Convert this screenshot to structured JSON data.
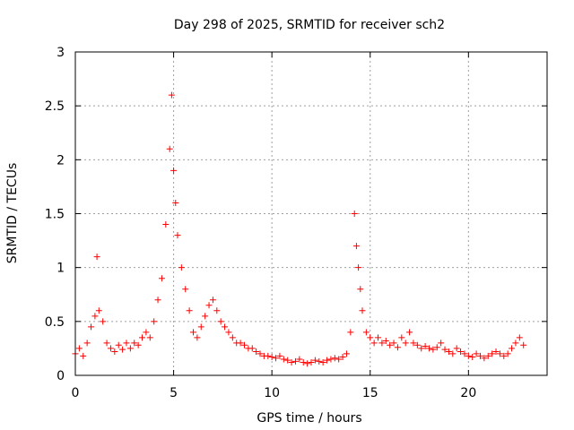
{
  "colors": {
    "series": "#ff0000",
    "axis": "#000000",
    "grid": "#a0a0a0",
    "background": "#ffffff"
  },
  "chart_data": {
    "type": "scatter",
    "title": "Day 298 of 2025, SRMTID for receiver sch2",
    "xlabel": "GPS time / hours",
    "ylabel": "SRMTID / TECUs",
    "xlim": [
      0,
      24
    ],
    "ylim": [
      0,
      3
    ],
    "xticks": [
      0,
      5,
      10,
      15,
      20
    ],
    "xtick_labels": [
      "0",
      "5",
      "10",
      "15",
      "20"
    ],
    "yticks": [
      0,
      0.5,
      1,
      1.5,
      2,
      2.5,
      3
    ],
    "ytick_labels": [
      "0",
      "0.5",
      "1",
      "1.5",
      "2",
      "2.5",
      "3"
    ],
    "grid": true,
    "marker": "+",
    "series": [
      {
        "name": "SRMTID",
        "x": [
          0.0,
          0.2,
          0.4,
          0.6,
          0.8,
          1.0,
          1.1,
          1.2,
          1.4,
          1.6,
          1.8,
          2.0,
          2.2,
          2.4,
          2.6,
          2.8,
          3.0,
          3.2,
          3.4,
          3.6,
          3.8,
          4.0,
          4.2,
          4.4,
          4.6,
          4.8,
          4.9,
          5.0,
          5.1,
          5.2,
          5.4,
          5.6,
          5.8,
          6.0,
          6.2,
          6.4,
          6.6,
          6.8,
          7.0,
          7.2,
          7.4,
          7.6,
          7.8,
          8.0,
          8.2,
          8.4,
          8.6,
          8.8,
          9.0,
          9.2,
          9.4,
          9.6,
          9.8,
          10.0,
          10.2,
          10.4,
          10.6,
          10.8,
          11.0,
          11.2,
          11.4,
          11.6,
          11.8,
          12.0,
          12.2,
          12.4,
          12.6,
          12.8,
          13.0,
          13.2,
          13.4,
          13.6,
          13.8,
          14.0,
          14.2,
          14.3,
          14.4,
          14.5,
          14.6,
          14.8,
          15.0,
          15.2,
          15.4,
          15.6,
          15.8,
          16.0,
          16.2,
          16.4,
          16.6,
          16.8,
          17.0,
          17.2,
          17.4,
          17.6,
          17.8,
          18.0,
          18.2,
          18.4,
          18.6,
          18.8,
          19.0,
          19.2,
          19.4,
          19.6,
          19.8,
          20.0,
          20.2,
          20.4,
          20.6,
          20.8,
          21.0,
          21.2,
          21.4,
          21.6,
          21.8,
          22.0,
          22.2,
          22.4,
          22.6,
          22.8
        ],
        "values": [
          0.2,
          0.25,
          0.18,
          0.3,
          0.45,
          0.55,
          1.1,
          0.6,
          0.5,
          0.3,
          0.25,
          0.22,
          0.28,
          0.24,
          0.3,
          0.25,
          0.3,
          0.28,
          0.35,
          0.4,
          0.35,
          0.5,
          0.7,
          0.9,
          1.4,
          2.1,
          2.6,
          1.9,
          1.6,
          1.3,
          1.0,
          0.8,
          0.6,
          0.4,
          0.35,
          0.45,
          0.55,
          0.65,
          0.7,
          0.6,
          0.5,
          0.45,
          0.4,
          0.35,
          0.3,
          0.3,
          0.28,
          0.25,
          0.25,
          0.22,
          0.2,
          0.18,
          0.18,
          0.17,
          0.16,
          0.18,
          0.15,
          0.14,
          0.12,
          0.13,
          0.15,
          0.12,
          0.11,
          0.12,
          0.14,
          0.13,
          0.12,
          0.14,
          0.15,
          0.16,
          0.15,
          0.17,
          0.2,
          0.4,
          1.5,
          1.2,
          1.0,
          0.8,
          0.6,
          0.4,
          0.35,
          0.3,
          0.35,
          0.3,
          0.32,
          0.28,
          0.3,
          0.26,
          0.35,
          0.3,
          0.4,
          0.3,
          0.28,
          0.25,
          0.27,
          0.25,
          0.24,
          0.26,
          0.3,
          0.24,
          0.22,
          0.2,
          0.25,
          0.22,
          0.2,
          0.18,
          0.17,
          0.2,
          0.18,
          0.16,
          0.18,
          0.2,
          0.22,
          0.2,
          0.18,
          0.2,
          0.25,
          0.3,
          0.35,
          0.28
        ]
      }
    ]
  }
}
